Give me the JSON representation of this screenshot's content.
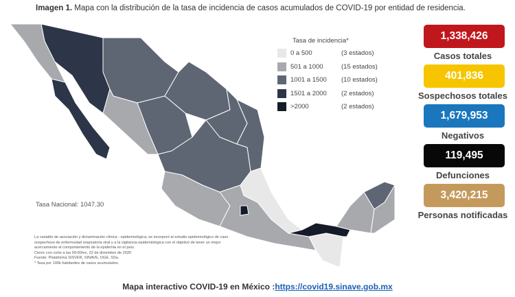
{
  "title": {
    "label": "Imagen 1.",
    "text": "Mapa con la distribución de la tasa de incidencia de casos acumulados de COVID-19 por entidad de residencia."
  },
  "legend": {
    "title": "Tasa de incidencia*",
    "items": [
      {
        "range": "0 a 500",
        "count": "(3 estados)",
        "color": "#e8e8e8"
      },
      {
        "range": "501 a 1000",
        "count": "(15 estados)",
        "color": "#a7a9ad"
      },
      {
        "range": "1001 a 1500",
        "count": "(10 estados)",
        "color": "#5f6673"
      },
      {
        "range": "1501 a 2000",
        "count": "(2 estados)",
        "color": "#2d3648"
      },
      {
        "range": ">2000",
        "count": "(2 estados)",
        "color": "#151b28"
      }
    ]
  },
  "national_rate": "Tasa Nacional: 1047.30",
  "notes": [
    "La variable de asociación y dictaminación clínica - epidemiológica; se incorporó al estudio epidemiológico de caso sospechoso de enfermedad respiratoria viral y a la vigilancia epidemiológica con el objetivo de tener un mejor acercamiento al comportamiento de la epidemia en el país.",
    "Cierre con corte a las 09:00hrs, 22 de diciembre de 2020",
    "Fuente: Plataforma SISVER, SINAVE, DGE, SSa.",
    "* Tasa por 100k habitantes de casos acumulados."
  ],
  "stats": [
    {
      "value": "1,338,426",
      "label": "Casos totales",
      "color": "#c0171d"
    },
    {
      "value": "401,836",
      "label": "Sospechosos totales",
      "color": "#f6c500"
    },
    {
      "value": "1,679,953",
      "label": "Negativos",
      "color": "#1a76bd"
    },
    {
      "value": "119,495",
      "label": "Defunciones",
      "color": "#080808"
    },
    {
      "value": "3,420,215",
      "label": "Personas notificadas",
      "color": "#c49a5c"
    }
  ],
  "footer": {
    "text": "Mapa interactivo COVID-19 en México :",
    "link": "https://covid19.sinave.gob.mx"
  }
}
